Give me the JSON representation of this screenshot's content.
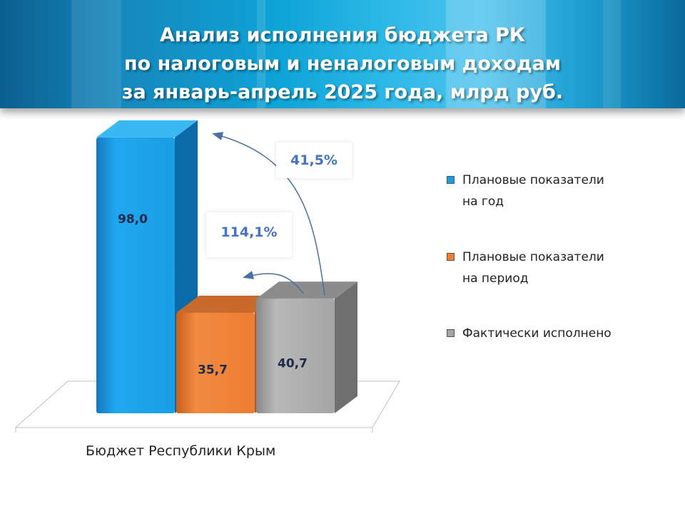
{
  "title": {
    "line1": "Анализ исполнения бюджета РК",
    "line2": "по налоговым и неналоговым доходам",
    "line3": "за январь-апрель 2025 года, млрд руб."
  },
  "colors": {
    "plan_year": "#1a9de3",
    "plan_period": "#ed7d31",
    "actual": "#a5a5a5"
  },
  "chart_data": {
    "type": "bar",
    "categories": [
      "Бюджет Республики Крым"
    ],
    "series": [
      {
        "name": "Плановые показатели на год",
        "values": [
          98.0
        ],
        "label": "98,0"
      },
      {
        "name": "Плановые показатели на период",
        "values": [
          35.7
        ],
        "label": "35,7"
      },
      {
        "name": "Фактически исполнено",
        "values": [
          40.7
        ],
        "label": "40,7"
      }
    ],
    "annotations": [
      {
        "text": "41,5%",
        "from": "Фактически исполнено",
        "to": "Плановые показатели на год"
      },
      {
        "text": "114,1%",
        "from": "Фактически исполнено",
        "to": "Плановые показатели на период"
      }
    ],
    "ylim": [
      0,
      100
    ],
    "legend": "right"
  },
  "legend": {
    "item1": {
      "line1": "Плановые показатели",
      "line2": "на год"
    },
    "item2": {
      "line1": "Плановые показатели",
      "line2": "на период"
    },
    "item3": {
      "line1": "Фактически исполнено"
    }
  }
}
